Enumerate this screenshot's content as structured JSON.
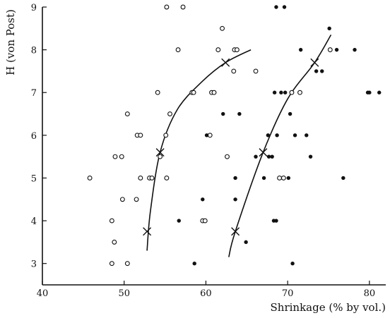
{
  "chart_data": {
    "type": "scatter",
    "xlabel": "Shrinkage (% by vol.)",
    "ylabel": "H (von Post)",
    "xlim": [
      40,
      82
    ],
    "ylim": [
      2.5,
      9
    ],
    "x_ticks": [
      40,
      50,
      60,
      70,
      80
    ],
    "y_ticks": [
      3,
      4,
      5,
      6,
      7,
      8,
      9
    ],
    "x_tick_labels": [
      "40",
      "50",
      "60",
      "70",
      "80"
    ],
    "y_tick_labels": [
      "3",
      "4",
      "5",
      "6",
      "7",
      "8",
      "9"
    ],
    "grid": false,
    "series": [
      {
        "marker": "open-circle",
        "points": [
          [
            45.8,
            5
          ],
          [
            48.5,
            3
          ],
          [
            48.5,
            4
          ],
          [
            48.8,
            3.5
          ],
          [
            48.9,
            5.5
          ],
          [
            49.7,
            5.5
          ],
          [
            49.8,
            4.5
          ],
          [
            50.4,
            3
          ],
          [
            50.4,
            6.5
          ],
          [
            51.5,
            4.5
          ],
          [
            51.6,
            6
          ],
          [
            52.0,
            6
          ],
          [
            52.0,
            5
          ],
          [
            53.1,
            5
          ],
          [
            53.4,
            5
          ],
          [
            54.1,
            7
          ],
          [
            54.4,
            5.5
          ],
          [
            55.2,
            9
          ],
          [
            55.1,
            6
          ],
          [
            55.2,
            5
          ],
          [
            55.6,
            6.5
          ],
          [
            56.6,
            8
          ],
          [
            57.2,
            9
          ],
          [
            58.3,
            7
          ],
          [
            58.5,
            7
          ],
          [
            59.6,
            4
          ],
          [
            59.9,
            4
          ],
          [
            60.5,
            6
          ],
          [
            60.7,
            7
          ],
          [
            61.0,
            7
          ],
          [
            61.5,
            8
          ],
          [
            62.0,
            8.5
          ],
          [
            62.6,
            5.5
          ],
          [
            63.4,
            7.5
          ],
          [
            63.5,
            8
          ],
          [
            63.8,
            8
          ],
          [
            66.1,
            7.5
          ],
          [
            69.0,
            5
          ],
          [
            69.5,
            5
          ],
          [
            70.5,
            7
          ],
          [
            71.5,
            7
          ],
          [
            75.2,
            8
          ]
        ]
      },
      {
        "marker": "filled-circle",
        "points": [
          [
            56.7,
            4
          ],
          [
            58.6,
            3
          ],
          [
            59.6,
            4.5
          ],
          [
            60.1,
            6
          ],
          [
            62.1,
            6.5
          ],
          [
            63.6,
            5
          ],
          [
            63.6,
            4.5
          ],
          [
            64.1,
            6.5
          ],
          [
            64.9,
            3.5
          ],
          [
            66.1,
            5.5
          ],
          [
            67.1,
            5
          ],
          [
            67.6,
            6
          ],
          [
            67.7,
            5.5
          ],
          [
            68.1,
            5.5
          ],
          [
            68.3,
            4
          ],
          [
            68.6,
            4
          ],
          [
            68.4,
            7
          ],
          [
            68.6,
            9
          ],
          [
            68.7,
            6
          ],
          [
            69.2,
            7
          ],
          [
            69.6,
            9
          ],
          [
            69.7,
            7
          ],
          [
            70.1,
            5
          ],
          [
            70.3,
            6.5
          ],
          [
            70.6,
            3
          ],
          [
            70.9,
            6
          ],
          [
            71.6,
            8
          ],
          [
            72.3,
            6
          ],
          [
            72.8,
            5.5
          ],
          [
            73.5,
            7.5
          ],
          [
            74.2,
            7.5
          ],
          [
            75.1,
            8.5
          ],
          [
            76.0,
            8
          ],
          [
            76.8,
            5
          ],
          [
            78.2,
            8
          ],
          [
            79.8,
            7
          ],
          [
            80.0,
            7
          ],
          [
            81.2,
            7
          ]
        ]
      },
      {
        "marker": "cross",
        "points": [
          [
            52.8,
            3.75
          ],
          [
            54.4,
            5.6
          ],
          [
            62.4,
            7.7
          ],
          [
            63.6,
            3.75
          ],
          [
            67.0,
            5.6
          ],
          [
            73.3,
            7.7
          ]
        ]
      }
    ],
    "curves": [
      {
        "points": [
          [
            52.8,
            3.3
          ],
          [
            53.2,
            4.2
          ],
          [
            54.4,
            5.6
          ],
          [
            56.5,
            6.6
          ],
          [
            59.5,
            7.25
          ],
          [
            62.4,
            7.7
          ],
          [
            65.5,
            8.0
          ]
        ]
      },
      {
        "points": [
          [
            62.8,
            3.15
          ],
          [
            63.6,
            3.75
          ],
          [
            67.0,
            5.6
          ],
          [
            70.0,
            6.85
          ],
          [
            73.3,
            7.7
          ],
          [
            75.3,
            8.35
          ]
        ]
      }
    ]
  }
}
